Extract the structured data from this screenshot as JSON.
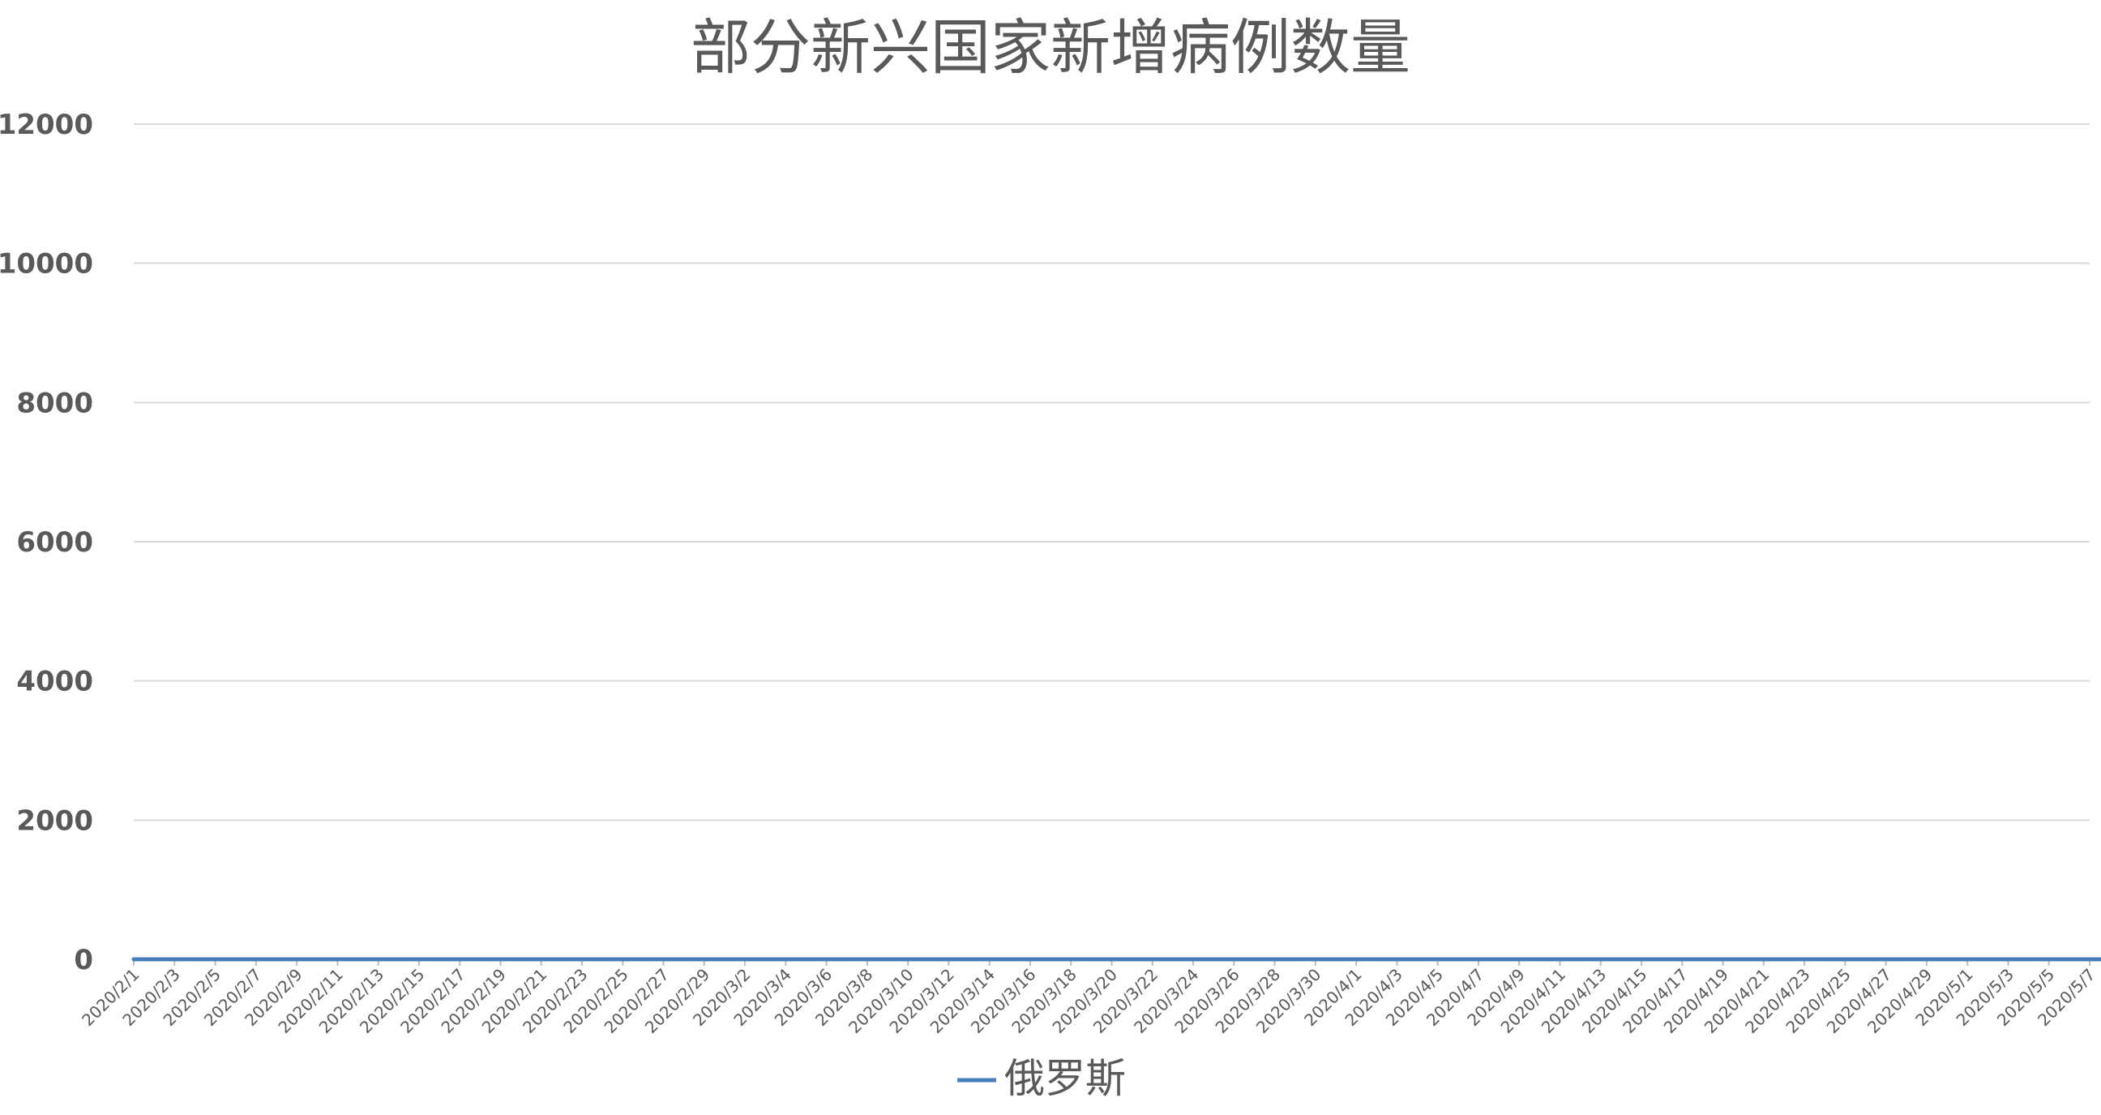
{
  "chart_data": {
    "type": "line",
    "title": "部分新兴国家新增病例数量",
    "xlabel": "",
    "ylabel": "",
    "ylim": [
      0,
      12000
    ],
    "yticks": [
      0,
      2000,
      4000,
      6000,
      8000,
      10000,
      12000
    ],
    "grid": true,
    "legend": "bottom",
    "x_start": "2020/2/1",
    "x_end": "2020/5/7",
    "x_tick_labels": [
      "2020/2/1",
      "2020/2/3",
      "2020/2/5",
      "2020/2/7",
      "2020/2/9",
      "2020/2/11",
      "2020/2/13",
      "2020/2/15",
      "2020/2/17",
      "2020/2/19",
      "2020/2/21",
      "2020/2/23",
      "2020/2/25",
      "2020/2/27",
      "2020/2/29",
      "2020/3/2",
      "2020/3/4",
      "2020/3/6",
      "2020/3/8",
      "2020/3/10",
      "2020/3/12",
      "2020/3/14",
      "2020/3/16",
      "2020/3/18",
      "2020/3/20",
      "2020/3/22",
      "2020/3/24",
      "2020/3/26",
      "2020/3/28",
      "2020/3/30",
      "2020/4/1",
      "2020/4/3",
      "2020/4/5",
      "2020/4/7",
      "2020/4/9",
      "2020/4/11",
      "2020/4/13",
      "2020/4/15",
      "2020/4/17",
      "2020/4/19",
      "2020/4/21",
      "2020/4/23",
      "2020/4/25",
      "2020/4/27",
      "2020/4/29",
      "2020/5/1",
      "2020/5/3",
      "2020/5/5",
      "2020/5/7"
    ],
    "series": [
      {
        "name": "俄罗斯",
        "color": "#4a7ebb",
        "start_date": "2020/2/1",
        "values": [
          0,
          0,
          0,
          0,
          0,
          0,
          0,
          0,
          0,
          0,
          0,
          0,
          0,
          0,
          0,
          0,
          0,
          0,
          0,
          0,
          0,
          0,
          0,
          0,
          0,
          0,
          0,
          0,
          0,
          0,
          0,
          0,
          0,
          0,
          0,
          0,
          0,
          0,
          0,
          0,
          0,
          0,
          0,
          0,
          0,
          0,
          0,
          0,
          0,
          0,
          0,
          0,
          0,
          0,
          0,
          0,
          0,
          0,
          0,
          0,
          0,
          0,
          0,
          0,
          0,
          0,
          0,
          0,
          0,
          0,
          0,
          0,
          0,
          0,
          0,
          0,
          0,
          0,
          0,
          0,
          0,
          0,
          0,
          0,
          0,
          0,
          0,
          0,
          0,
          0,
          0,
          0,
          0,
          0,
          0,
          0,
          0,
          0,
          0,
          0,
          0,
          0,
          0,
          0,
          0,
          0,
          0,
          0,
          0,
          0,
          0,
          0,
          0,
          0,
          0,
          0,
          0,
          0,
          0,
          0,
          0,
          0,
          0,
          0,
          0,
          0,
          0,
          0,
          0,
          0,
          0,
          0,
          0,
          0,
          0,
          0,
          0,
          0,
          0,
          0,
          0,
          0,
          0,
          0,
          0,
          0,
          0,
          0,
          0,
          0,
          0,
          0,
          0,
          0,
          0,
          0,
          0,
          0,
          0,
          0,
          0,
          0,
          0,
          0,
          0,
          0,
          0,
          0,
          0,
          0,
          0,
          0,
          0,
          0,
          0,
          0,
          0,
          0,
          0,
          0,
          0,
          0,
          0,
          0,
          0,
          0,
          0,
          0,
          0,
          0,
          0,
          0,
          0,
          0,
          0,
          0,
          0,
          0,
          0,
          0,
          0,
          0,
          0,
          0,
          0,
          0
        ]
      }
    ]
  }
}
